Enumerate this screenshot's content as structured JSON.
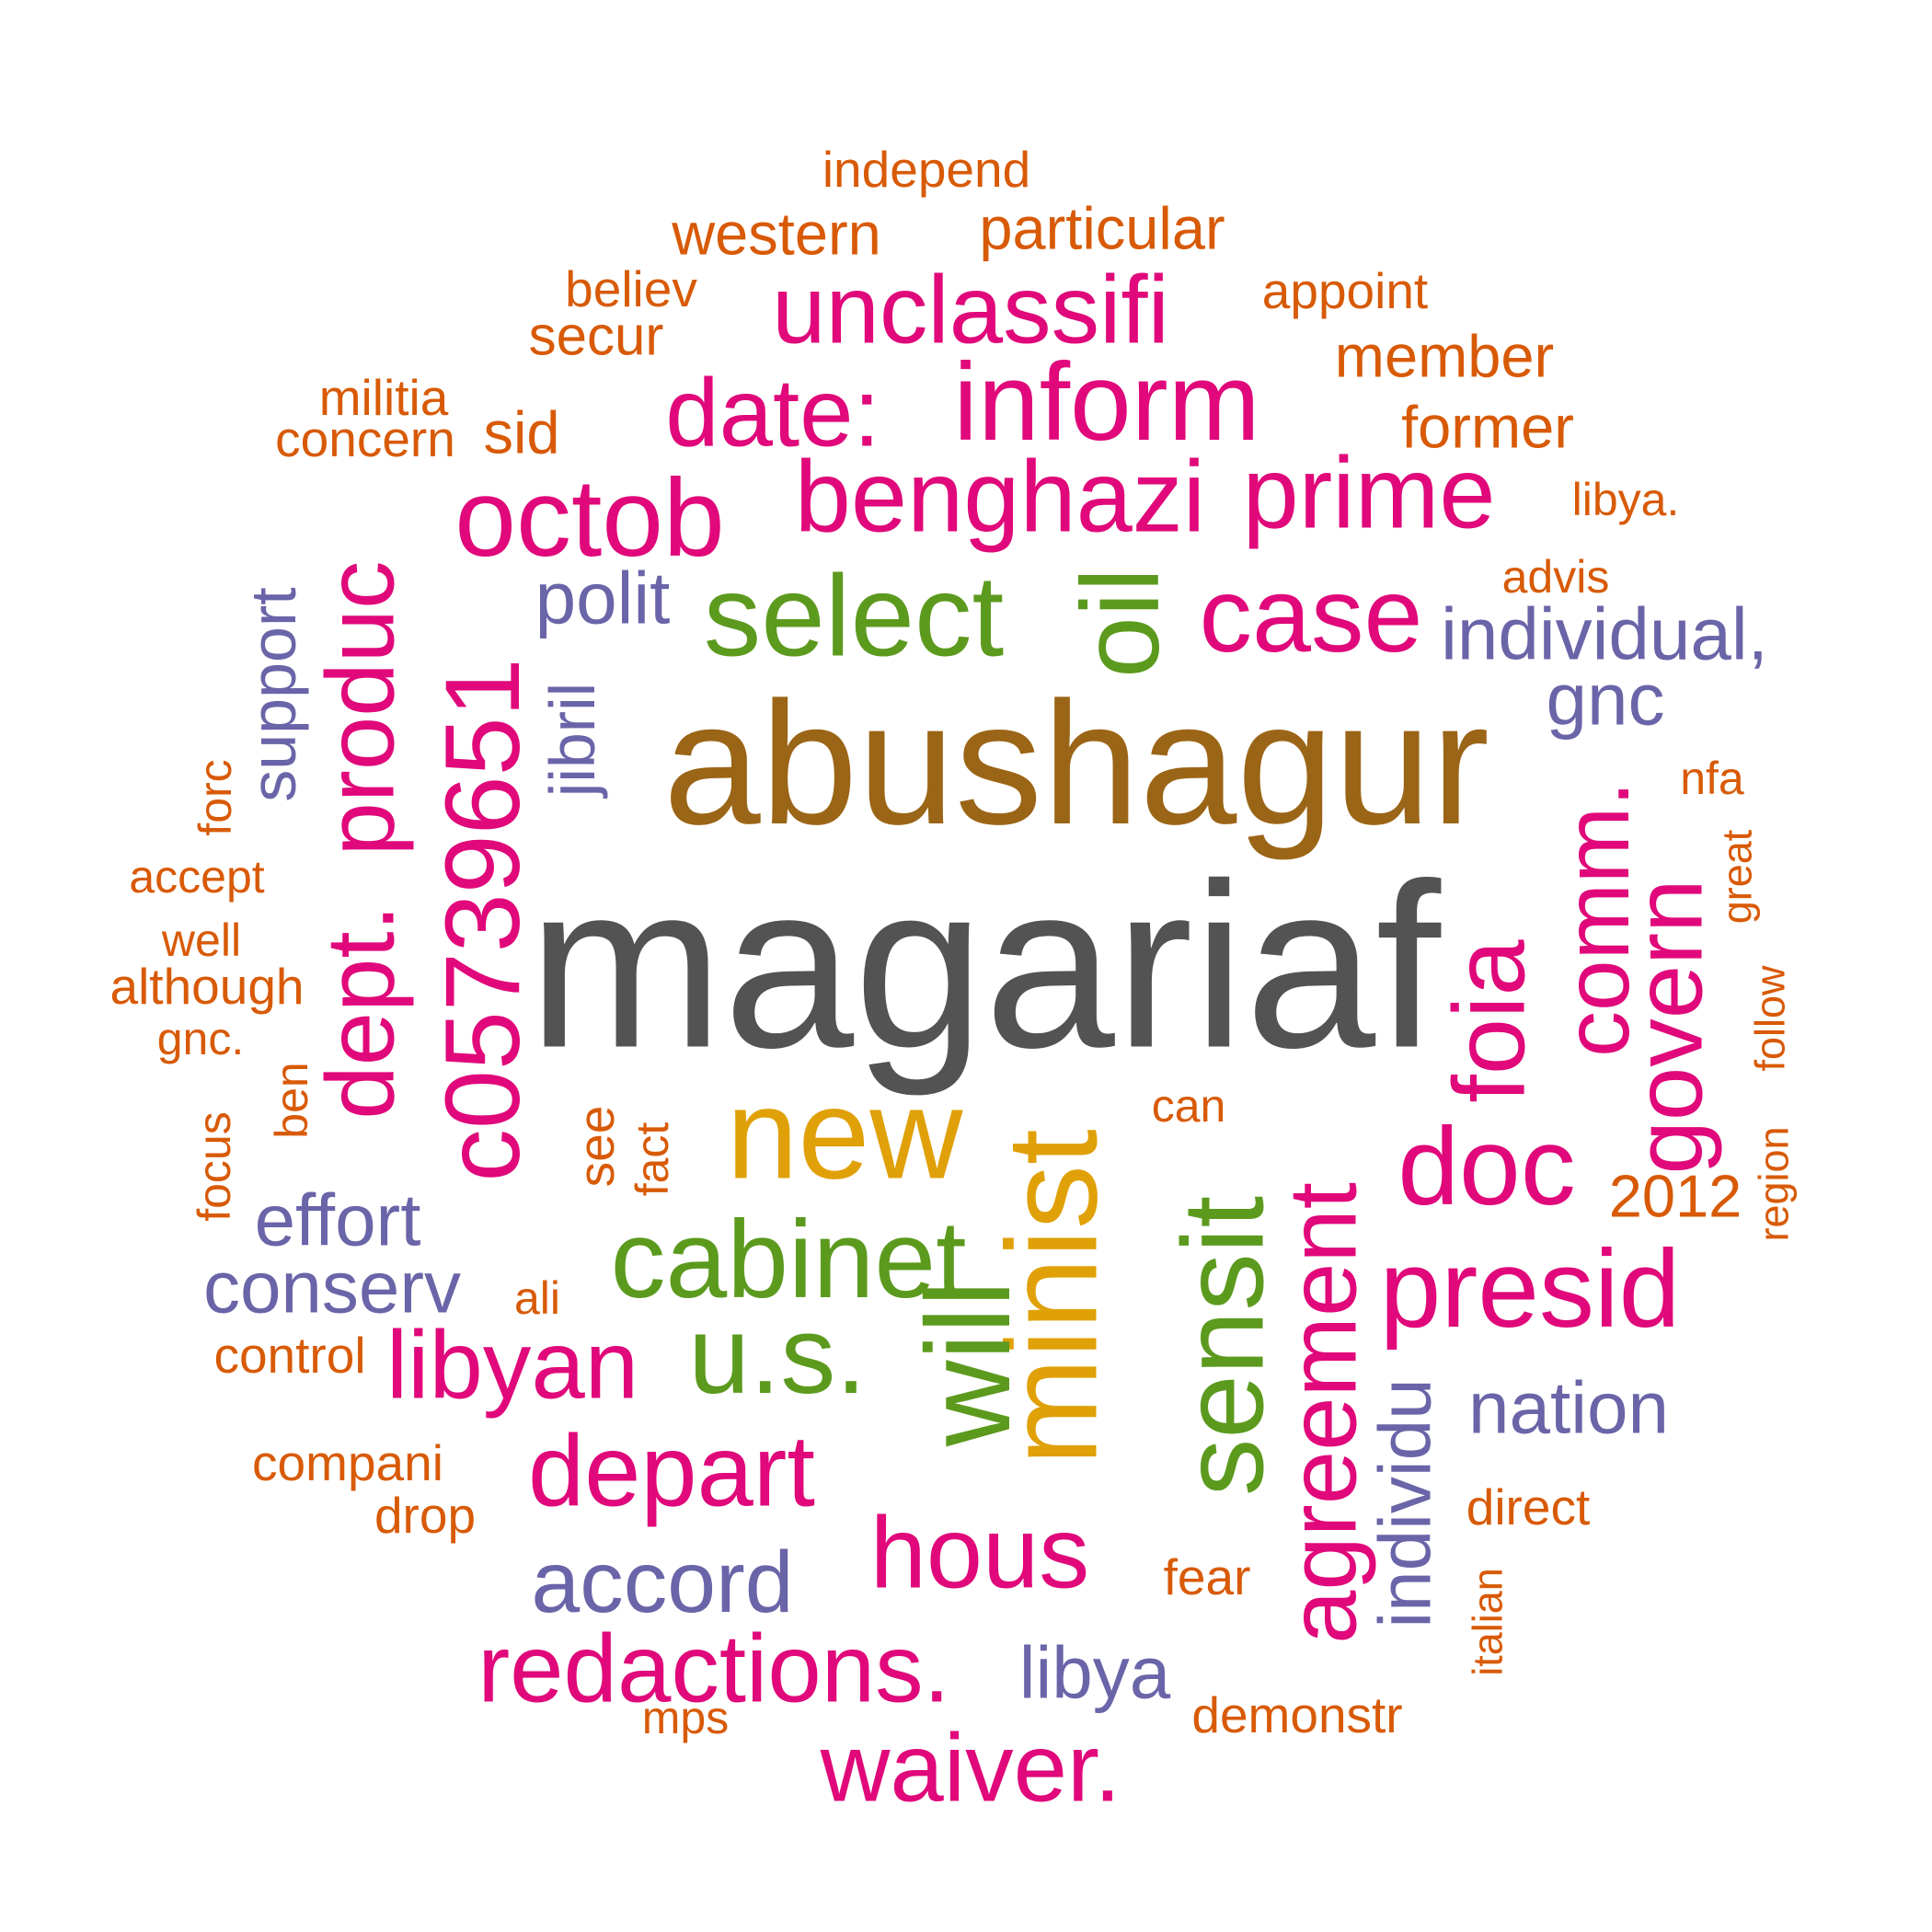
{
  "palette": {
    "gray": "#535353",
    "brown": "#9b6517",
    "gold": "#e0a007",
    "green": "#5c9a1e",
    "magenta": "#e0087a",
    "purple": "#6a64a8",
    "orange": "#d85a06"
  },
  "words": [
    {
      "text": "magariaf",
      "color": "gray"
    },
    {
      "text": "abushagur",
      "color": "brown"
    },
    {
      "text": "new",
      "color": "gold"
    },
    {
      "text": "minist",
      "color": "gold"
    },
    {
      "text": "select",
      "color": "green"
    },
    {
      "text": "oil",
      "color": "green"
    },
    {
      "text": "cabinet",
      "color": "green"
    },
    {
      "text": "u.s.",
      "color": "green"
    },
    {
      "text": "will",
      "color": "green"
    },
    {
      "text": "sensit",
      "color": "green"
    },
    {
      "text": "unclassifi",
      "color": "magenta"
    },
    {
      "text": "inform",
      "color": "magenta"
    },
    {
      "text": "date:",
      "color": "magenta"
    },
    {
      "text": "benghazi",
      "color": "magenta"
    },
    {
      "text": "prime",
      "color": "magenta"
    },
    {
      "text": "octob",
      "color": "magenta"
    },
    {
      "text": "case",
      "color": "magenta"
    },
    {
      "text": "c05739651",
      "color": "magenta"
    },
    {
      "text": "produc",
      "color": "magenta"
    },
    {
      "text": "dept.",
      "color": "magenta"
    },
    {
      "text": "foia",
      "color": "magenta"
    },
    {
      "text": "comm.",
      "color": "magenta"
    },
    {
      "text": "govern",
      "color": "magenta"
    },
    {
      "text": "doc",
      "color": "magenta"
    },
    {
      "text": "presid",
      "color": "magenta"
    },
    {
      "text": "agreement",
      "color": "magenta"
    },
    {
      "text": "libyan",
      "color": "magenta"
    },
    {
      "text": "depart",
      "color": "magenta"
    },
    {
      "text": "hous",
      "color": "magenta"
    },
    {
      "text": "redactions.",
      "color": "magenta"
    },
    {
      "text": "waiver.",
      "color": "magenta"
    },
    {
      "text": "polit",
      "color": "purple"
    },
    {
      "text": "individual,",
      "color": "purple"
    },
    {
      "text": "gnc",
      "color": "purple"
    },
    {
      "text": "jibril",
      "color": "purple"
    },
    {
      "text": "support",
      "color": "purple"
    },
    {
      "text": "effort",
      "color": "purple"
    },
    {
      "text": "conserv",
      "color": "purple"
    },
    {
      "text": "individu",
      "color": "purple"
    },
    {
      "text": "nation",
      "color": "purple"
    },
    {
      "text": "accord",
      "color": "purple"
    },
    {
      "text": "libya",
      "color": "purple"
    },
    {
      "text": "independ",
      "color": "orange"
    },
    {
      "text": "western",
      "color": "orange"
    },
    {
      "text": "particular",
      "color": "orange"
    },
    {
      "text": "believ",
      "color": "orange"
    },
    {
      "text": "appoint",
      "color": "orange"
    },
    {
      "text": "secur",
      "color": "orange"
    },
    {
      "text": "member",
      "color": "orange"
    },
    {
      "text": "militia",
      "color": "orange"
    },
    {
      "text": "concern",
      "color": "orange"
    },
    {
      "text": "sid",
      "color": "orange"
    },
    {
      "text": "former",
      "color": "orange"
    },
    {
      "text": "libya.",
      "color": "orange"
    },
    {
      "text": "advis",
      "color": "orange"
    },
    {
      "text": "nfa",
      "color": "orange"
    },
    {
      "text": "great",
      "color": "orange"
    },
    {
      "text": "follow",
      "color": "orange"
    },
    {
      "text": "region",
      "color": "orange"
    },
    {
      "text": "2012",
      "color": "orange"
    },
    {
      "text": "forc",
      "color": "orange"
    },
    {
      "text": "accept",
      "color": "orange"
    },
    {
      "text": "well",
      "color": "orange"
    },
    {
      "text": "although",
      "color": "orange"
    },
    {
      "text": "gnc.",
      "color": "orange"
    },
    {
      "text": "ben",
      "color": "orange"
    },
    {
      "text": "focus",
      "color": "orange"
    },
    {
      "text": "see",
      "color": "orange"
    },
    {
      "text": "fact",
      "color": "orange"
    },
    {
      "text": "can",
      "color": "orange"
    },
    {
      "text": "ali",
      "color": "orange"
    },
    {
      "text": "control",
      "color": "orange"
    },
    {
      "text": "compani",
      "color": "orange"
    },
    {
      "text": "drop",
      "color": "orange"
    },
    {
      "text": "mps",
      "color": "orange"
    },
    {
      "text": "direct",
      "color": "orange"
    },
    {
      "text": "fear",
      "color": "orange"
    },
    {
      "text": "italian",
      "color": "orange"
    },
    {
      "text": "demonstr",
      "color": "orange"
    }
  ]
}
